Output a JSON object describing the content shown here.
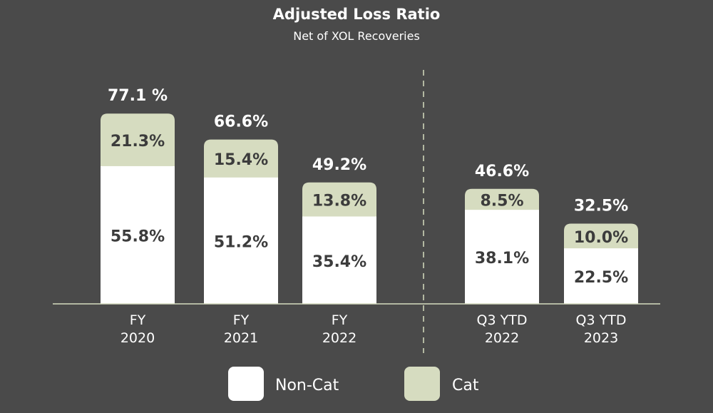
{
  "chart_data": {
    "type": "bar",
    "stacked": true,
    "title": "Adjusted Loss Ratio",
    "subtitle": "Net of XOL Recoveries",
    "groups": [
      {
        "categories": [
          [
            "FY",
            "2020"
          ],
          [
            "FY",
            "2021"
          ],
          [
            "FY",
            "2022"
          ]
        ]
      },
      {
        "categories": [
          [
            "Q3 YTD",
            "2022"
          ],
          [
            "Q3 YTD",
            "2023"
          ]
        ]
      }
    ],
    "categories": [
      "FY 2020",
      "FY 2021",
      "FY 2022",
      "Q3 YTD 2022",
      "Q3 YTD 2023"
    ],
    "series": [
      {
        "name": "Non-Cat",
        "values": [
          55.8,
          51.2,
          35.4,
          38.1,
          22.5
        ],
        "labels": [
          "55.8%",
          "51.2%",
          "35.4%",
          "38.1%",
          "22.5%"
        ],
        "color": "#ffffff"
      },
      {
        "name": "Cat",
        "values": [
          21.3,
          15.4,
          13.8,
          8.5,
          10.0
        ],
        "labels": [
          "21.3%",
          "15.4%",
          "13.8%",
          "8.5%",
          "10.0%"
        ],
        "color": "#d6dcc0"
      }
    ],
    "totals": [
      "77.1 %",
      "66.6%",
      "49.2%",
      "46.6%",
      "32.5%"
    ],
    "legend_position": "bottom-center",
    "colors": {
      "background": "#4a4a4a",
      "non_cat": "#ffffff",
      "cat": "#d6dcc0",
      "axis": "#d6dcc0",
      "segment_label": "#3c3c3c",
      "text": "#ffffff"
    }
  }
}
